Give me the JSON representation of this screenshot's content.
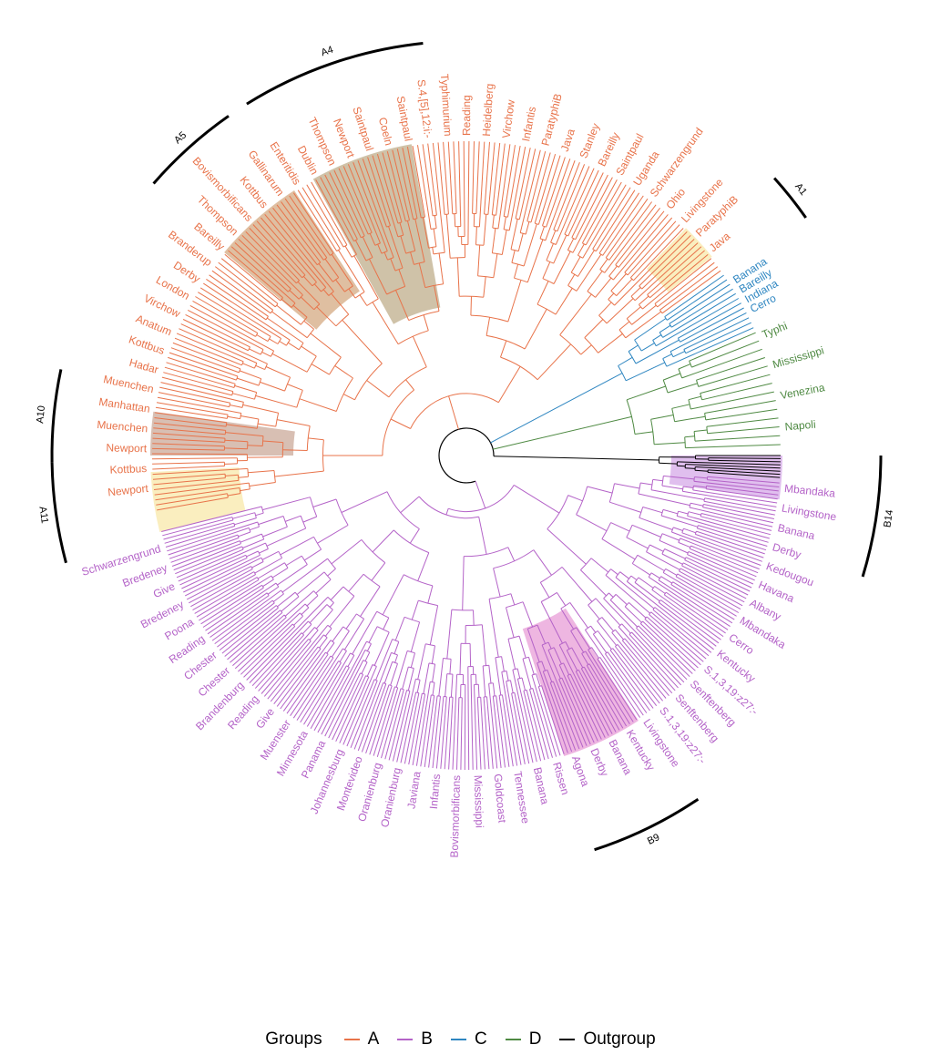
{
  "legend": {
    "title": "Groups",
    "items": [
      {
        "label": "A",
        "color": "#E8734A"
      },
      {
        "label": "B",
        "color": "#B463C8"
      },
      {
        "label": "C",
        "color": "#2E86C1"
      },
      {
        "label": "D",
        "color": "#4F8A43"
      },
      {
        "label": "Outgroup",
        "color": "#000000"
      }
    ]
  },
  "clades": [
    {
      "label": "A4"
    },
    {
      "label": "A5"
    },
    {
      "label": "A1"
    },
    {
      "label": "A10"
    },
    {
      "label": "A11"
    },
    {
      "label": "B14"
    },
    {
      "label": "B9"
    }
  ],
  "tips": {
    "A": [
      "Java",
      "ParatyphiB",
      "Livingstone",
      "Ohio",
      "Schwarzengrund",
      "Uganda",
      "Saintpaul",
      "Bareilly",
      "Stanley",
      "Java",
      "ParatyphiB",
      "Infantis",
      "Virchow",
      "Heidelberg",
      "Reading",
      "Typhimurium",
      "S.4,[5],12:i:-",
      "Saintpaul",
      "Coeln",
      "Saintpaul",
      "Newport",
      "Thompson",
      "Dublin",
      "Enteritidis",
      "Gallinarum",
      "Kottbus",
      "Bovismorbificans",
      "Thompson",
      "Bareilly",
      "Branderup",
      "Derby",
      "London",
      "Virchow",
      "Anatum",
      "Kottbus",
      "Hadar",
      "Muenchen",
      "Manhattan",
      "Muenchen",
      "Newport",
      "Kottbus",
      "Newport"
    ],
    "C": [
      "Cerro",
      "Indiana",
      "Bareilly",
      "Banana"
    ],
    "D": [
      "Napoli",
      "Venezina",
      "Mississippi",
      "Typhi"
    ],
    "B": [
      "Schwarzengrund",
      "Bredeney",
      "Give",
      "Bredeney",
      "Poona",
      "Reading",
      "Chester",
      "Chester",
      "Brandenburg",
      "Reading",
      "Give",
      "Muenster",
      "Minnesota",
      "Panama",
      "Johannesburg",
      "Montevideo",
      "Oranienburg",
      "Oranienburg",
      "Javiana",
      "Infantis",
      "Bovismorbificans",
      "Mississippi",
      "Goldcoast",
      "Tennessee",
      "Banana",
      "Rissen",
      "Agona",
      "Derby",
      "Banana",
      "Kentucky",
      "Livingstone",
      "S.1,3,19:z27:-",
      "Senftenberg",
      "Senftenberg",
      "S.1,3,19:z27:-",
      "Kentucky",
      "Cerro",
      "Mbandaka",
      "Albany",
      "Havana",
      "Kedougou",
      "Derby",
      "Banana",
      "Livingstone",
      "Mbandaka"
    ]
  }
}
